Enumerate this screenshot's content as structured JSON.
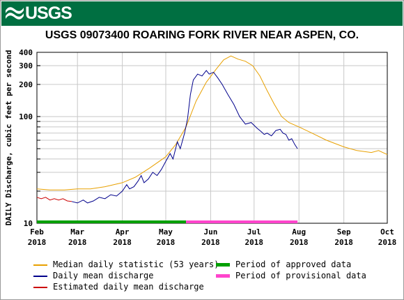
{
  "banner": {
    "logo_text": "USGS",
    "logo_color": "#006f41"
  },
  "chart_data": {
    "type": "line",
    "title": "USGS 09073400 ROARING FORK RIVER NEAR ASPEN, CO.",
    "ylabel": "DAILY Discharge, cubic feet per second",
    "xlabel": "",
    "yscale": "log",
    "ylim": [
      10,
      400
    ],
    "xlim": [
      "2018-02-01",
      "2018-10-01"
    ],
    "y_ticks": [
      10,
      100,
      200,
      300,
      400
    ],
    "x_ticks": [
      {
        "date": "2018-02-01",
        "label": "Feb\n2018"
      },
      {
        "date": "2018-03-01",
        "label": "Mar\n2018"
      },
      {
        "date": "2018-04-01",
        "label": "Apr\n2018"
      },
      {
        "date": "2018-05-01",
        "label": "May\n2018"
      },
      {
        "date": "2018-06-01",
        "label": "Jun\n2018"
      },
      {
        "date": "2018-07-01",
        "label": "Jul\n2018"
      },
      {
        "date": "2018-08-01",
        "label": "Aug\n2018"
      },
      {
        "date": "2018-09-01",
        "label": "Sep\n2018"
      },
      {
        "date": "2018-10-01",
        "label": "Oct\n2018"
      }
    ],
    "grid": true,
    "legend_position": "bottom",
    "series": [
      {
        "name": "Median daily statistic (53 years)",
        "color": "#e8a000",
        "points": [
          [
            "2018-02-01",
            21
          ],
          [
            "2018-02-10",
            20.5
          ],
          [
            "2018-02-20",
            20.5
          ],
          [
            "2018-03-01",
            21
          ],
          [
            "2018-03-10",
            21
          ],
          [
            "2018-03-20",
            22
          ],
          [
            "2018-04-01",
            24
          ],
          [
            "2018-04-10",
            27
          ],
          [
            "2018-04-20",
            33
          ],
          [
            "2018-05-01",
            42
          ],
          [
            "2018-05-08",
            55
          ],
          [
            "2018-05-15",
            80
          ],
          [
            "2018-05-22",
            140
          ],
          [
            "2018-05-29",
            210
          ],
          [
            "2018-06-05",
            280
          ],
          [
            "2018-06-10",
            340
          ],
          [
            "2018-06-15",
            370
          ],
          [
            "2018-06-20",
            345
          ],
          [
            "2018-06-25",
            330
          ],
          [
            "2018-06-30",
            300
          ],
          [
            "2018-07-05",
            240
          ],
          [
            "2018-07-10",
            175
          ],
          [
            "2018-07-15",
            130
          ],
          [
            "2018-07-20",
            100
          ],
          [
            "2018-07-25",
            88
          ],
          [
            "2018-08-01",
            80
          ],
          [
            "2018-08-10",
            70
          ],
          [
            "2018-08-20",
            60
          ],
          [
            "2018-09-01",
            52
          ],
          [
            "2018-09-10",
            48
          ],
          [
            "2018-09-20",
            46
          ],
          [
            "2018-09-25",
            48
          ],
          [
            "2018-10-01",
            44
          ]
        ]
      },
      {
        "name": "Daily mean discharge",
        "color": "#00008b",
        "points": [
          [
            "2018-02-25",
            16
          ],
          [
            "2018-03-01",
            15.5
          ],
          [
            "2018-03-05",
            16.5
          ],
          [
            "2018-03-08",
            15.5
          ],
          [
            "2018-03-12",
            16.2
          ],
          [
            "2018-03-16",
            17.5
          ],
          [
            "2018-03-20",
            17
          ],
          [
            "2018-03-24",
            18.5
          ],
          [
            "2018-03-28",
            18
          ],
          [
            "2018-04-01",
            20
          ],
          [
            "2018-04-04",
            23
          ],
          [
            "2018-04-06",
            21
          ],
          [
            "2018-04-09",
            22
          ],
          [
            "2018-04-12",
            25
          ],
          [
            "2018-04-14",
            28
          ],
          [
            "2018-04-16",
            24
          ],
          [
            "2018-04-19",
            26
          ],
          [
            "2018-04-22",
            30
          ],
          [
            "2018-04-25",
            28
          ],
          [
            "2018-04-28",
            32
          ],
          [
            "2018-05-01",
            38
          ],
          [
            "2018-05-04",
            45
          ],
          [
            "2018-05-06",
            40
          ],
          [
            "2018-05-09",
            58
          ],
          [
            "2018-05-11",
            50
          ],
          [
            "2018-05-14",
            70
          ],
          [
            "2018-05-16",
            95
          ],
          [
            "2018-05-18",
            160
          ],
          [
            "2018-05-20",
            220
          ],
          [
            "2018-05-23",
            250
          ],
          [
            "2018-05-26",
            240
          ],
          [
            "2018-05-29",
            270
          ],
          [
            "2018-05-31",
            250
          ],
          [
            "2018-06-03",
            260
          ],
          [
            "2018-06-06",
            230
          ],
          [
            "2018-06-09",
            200
          ],
          [
            "2018-06-13",
            160
          ],
          [
            "2018-06-17",
            130
          ],
          [
            "2018-06-21",
            100
          ],
          [
            "2018-06-25",
            85
          ],
          [
            "2018-06-29",
            88
          ],
          [
            "2018-07-03",
            78
          ],
          [
            "2018-07-06",
            72
          ],
          [
            "2018-07-08",
            68
          ],
          [
            "2018-07-10",
            70
          ],
          [
            "2018-07-13",
            66
          ],
          [
            "2018-07-16",
            74
          ],
          [
            "2018-07-19",
            76
          ],
          [
            "2018-07-21",
            70
          ],
          [
            "2018-07-23",
            68
          ],
          [
            "2018-07-25",
            60
          ],
          [
            "2018-07-27",
            62
          ],
          [
            "2018-07-29",
            55
          ],
          [
            "2018-07-31",
            50
          ]
        ]
      },
      {
        "name": "Estimated daily mean discharge",
        "color": "#cc0000",
        "points": [
          [
            "2018-02-01",
            17.5
          ],
          [
            "2018-02-04",
            17
          ],
          [
            "2018-02-07",
            17.5
          ],
          [
            "2018-02-10",
            16.5
          ],
          [
            "2018-02-13",
            17
          ],
          [
            "2018-02-16",
            16.5
          ],
          [
            "2018-02-19",
            17
          ],
          [
            "2018-02-22",
            16.2
          ],
          [
            "2018-02-25",
            16
          ]
        ]
      }
    ],
    "periods": [
      {
        "name": "Period of approved data",
        "color": "#00a000",
        "start": "2018-02-01",
        "end": "2018-05-15"
      },
      {
        "name": "Period of provisional data",
        "color": "#ff44cc",
        "start": "2018-05-15",
        "end": "2018-07-31"
      }
    ]
  }
}
